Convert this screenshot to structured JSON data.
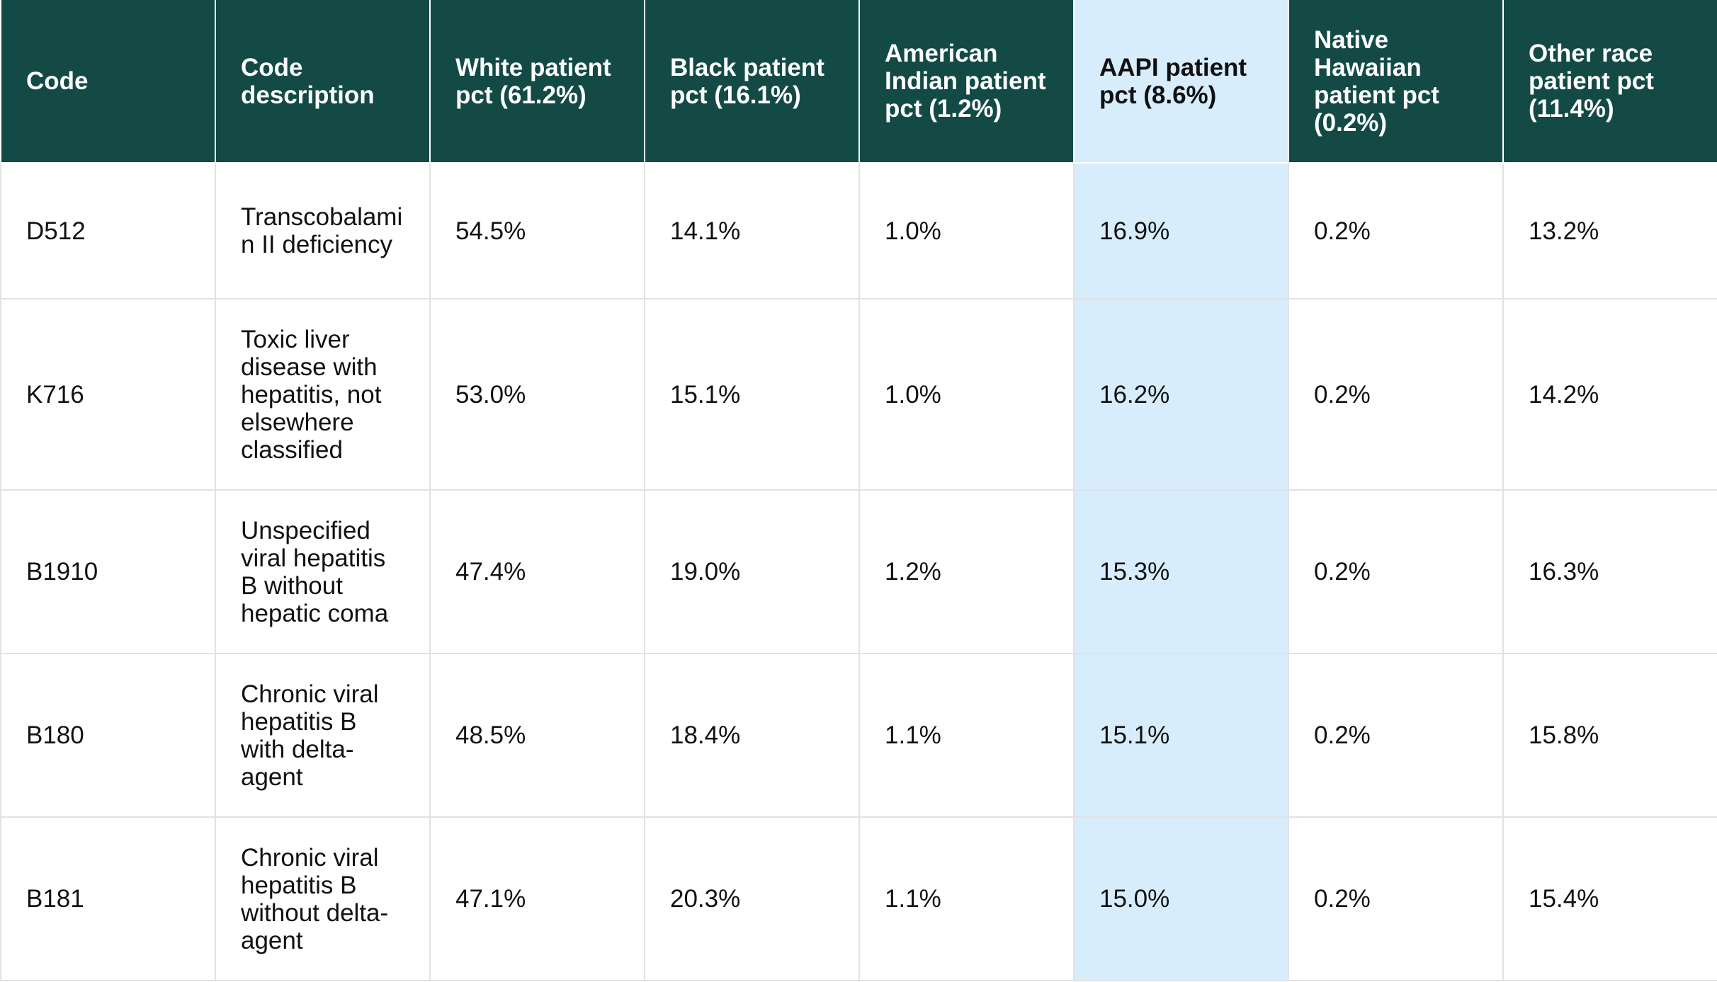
{
  "table": {
    "columns": [
      "Code",
      "Code description",
      "White patient pct (61.2%)",
      "Black patient pct (16.1%)",
      "American Indian patient pct (1.2%)",
      "AAPI patient pct (8.6%)",
      "Native Hawaiian patient pct (0.2%)",
      "Other race patient pct (11.4%)"
    ],
    "highlight_column": "AAPI patient pct (8.6%)",
    "highlight_color": "#d8edfc",
    "header_color": "#134a46",
    "rows": [
      [
        "D512",
        "Transcobalamin II deficiency",
        "54.5%",
        "14.1%",
        "1.0%",
        "16.9%",
        "0.2%",
        "13.2%"
      ],
      [
        "K716",
        "Toxic liver disease with hepatitis, not elsewhere classified",
        "53.0%",
        "15.1%",
        "1.0%",
        "16.2%",
        "0.2%",
        "14.2%"
      ],
      [
        "B1910",
        "Unspecified viral hepatitis B without hepatic coma",
        "47.4%",
        "19.0%",
        "1.2%",
        "15.3%",
        "0.2%",
        "16.3%"
      ],
      [
        "B180",
        "Chronic viral hepatitis B with delta-agent",
        "48.5%",
        "18.4%",
        "1.1%",
        "15.1%",
        "0.2%",
        "15.8%"
      ],
      [
        "B181",
        "Chronic viral hepatitis B without delta-agent",
        "47.1%",
        "20.3%",
        "1.1%",
        "15.0%",
        "0.2%",
        "15.4%"
      ]
    ]
  }
}
